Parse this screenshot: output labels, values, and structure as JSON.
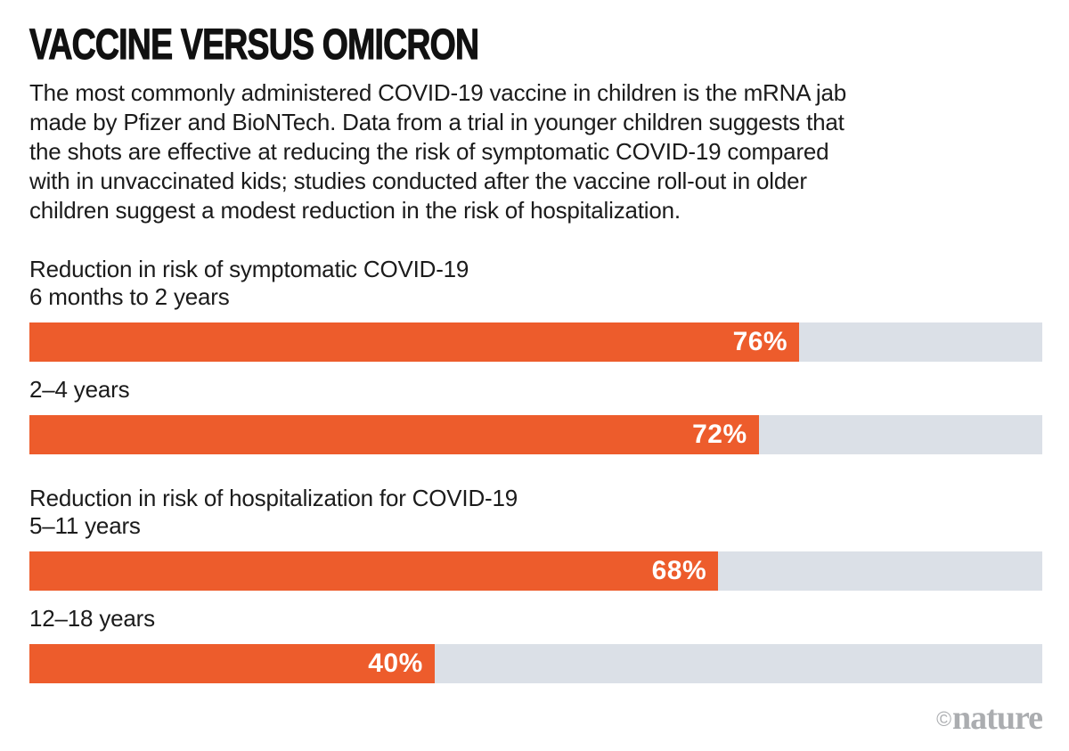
{
  "title": "VACCINE VERSUS OMICRON",
  "intro_lines": [
    "The most commonly administered COVID-19 vaccine in children is the mRNA jab",
    "made by Pfizer and BioNTech. Data from a trial in younger children suggests that",
    "the shots are effective at reducing the risk of symptomatic COVID-19 compared",
    "with in unvaccinated kids; studies conducted after the vaccine roll-out in older",
    "children suggest a modest reduction in the risk of hospitalization."
  ],
  "colors": {
    "bar": "#ED5C2C",
    "track": "#DBE0E7",
    "text": "#1B1B1B",
    "credit": "#ABADB0"
  },
  "chart_data": {
    "type": "bar",
    "orientation": "horizontal",
    "unit": "%",
    "xlim": [
      0,
      100
    ],
    "grid": false,
    "legend": false,
    "groups": [
      {
        "heading": "Reduction in risk of symptomatic COVID-19",
        "bars": [
          {
            "label": "6 months to 2 years",
            "value": 76,
            "display": "76%"
          },
          {
            "label": "2–4 years",
            "value": 72,
            "display": "72%"
          }
        ]
      },
      {
        "heading": "Reduction in risk of hospitalization for COVID-19",
        "bars": [
          {
            "label": "5–11 years",
            "value": 68,
            "display": "68%"
          },
          {
            "label": "12–18 years",
            "value": 40,
            "display": "40%"
          }
        ]
      }
    ]
  },
  "credit": {
    "copyright": "©",
    "brand": "nature"
  }
}
